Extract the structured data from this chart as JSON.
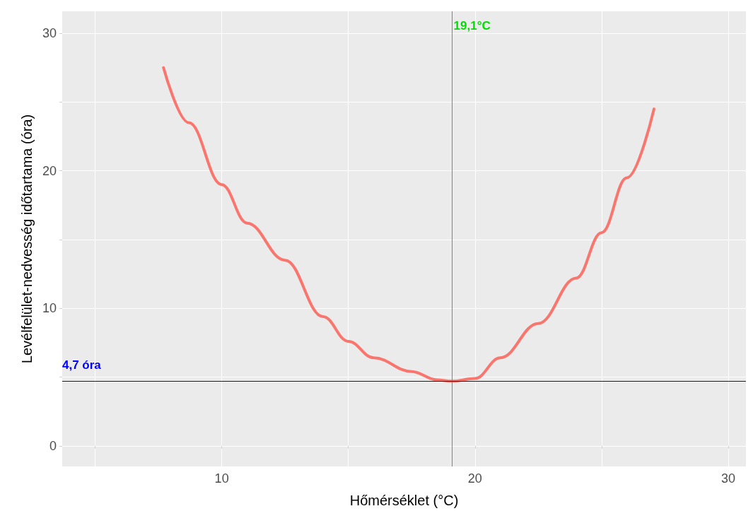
{
  "chart_data": {
    "type": "line",
    "xlabel": "Hőmérséklet (°C)",
    "ylabel": "Levélfelület-nedvesség időtartama (óra)",
    "x": [
      7.7,
      8.7,
      10,
      11,
      12.5,
      14,
      15,
      16,
      17.5,
      18.5,
      19.1,
      20,
      21,
      22.5,
      24,
      25,
      26,
      27.07
    ],
    "series": [
      {
        "color": "#f8766d",
        "values": [
          27.5,
          23.5,
          19.0,
          16.2,
          13.5,
          9.4,
          7.6,
          6.4,
          5.4,
          4.8,
          4.7,
          4.9,
          6.4,
          8.9,
          12.2,
          15.5,
          19.5,
          24.5
        ]
      }
    ],
    "xlim": [
      3.7,
      30.7
    ],
    "ylim": [
      -1.5,
      31.6
    ],
    "xticks": [
      {
        "value": 5,
        "label": null
      },
      10,
      {
        "value": 15,
        "label": null
      },
      20,
      {
        "value": 25,
        "label": null
      },
      30
    ],
    "yticks": [
      0,
      {
        "value": 5,
        "label": null
      },
      10,
      {
        "value": 15,
        "label": null
      },
      20,
      {
        "value": 25,
        "label": null
      },
      30
    ],
    "grid": true,
    "marker": "none",
    "line_style": "solid",
    "ref_lines": [
      {
        "axis": "y",
        "value": 4.7,
        "label": "4,7 óra",
        "color": "#0000ff"
      },
      {
        "axis": "x",
        "value": 19.1,
        "label": "19,1°C",
        "color": "#00dd00"
      }
    ]
  }
}
